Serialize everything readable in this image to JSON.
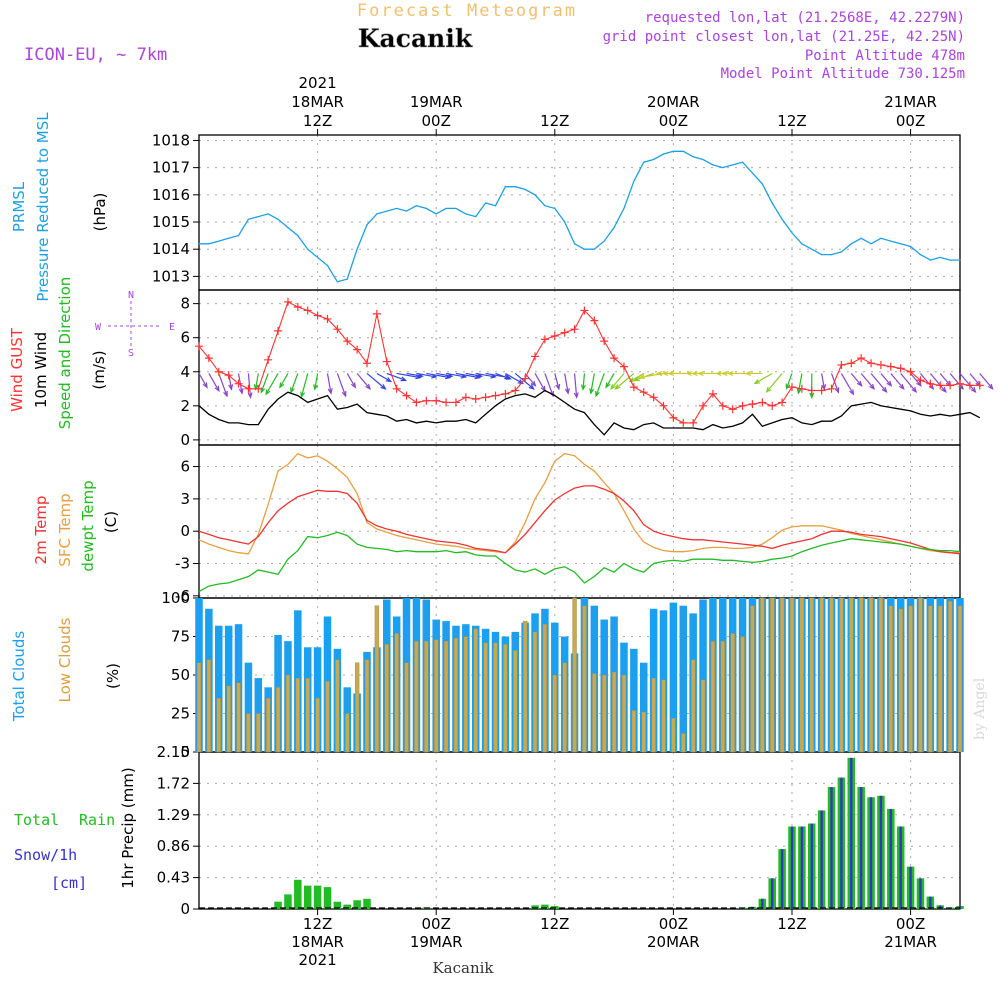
{
  "header": {
    "subtitle": "Forecast Meteogram",
    "location": "Kacanik",
    "model": "ICON-EU, ~ 7km",
    "requested": "requested lon,lat (21.2568E, 42.2279N)",
    "gridpoint": "grid point closest lon,lat (21.25E, 42.25N)",
    "point_alt": "Point Altitude 478m",
    "model_alt": "Model Point Altitude 730.125m",
    "credit": "by Angel",
    "footer": "Kacanik"
  },
  "colors": {
    "pressure": "#1ba1e2",
    "gust": "#ff3333",
    "wind": "#000000",
    "temp": "#ee3333",
    "sfc": "#e6a040",
    "dew": "#22bb22",
    "cloud_total": "#1aa0ee",
    "cloud_low": "#c8a850",
    "rain": "#22bb22",
    "snow": "#3333cc",
    "label_purple": "#aa44dd"
  },
  "time_axis": {
    "top": [
      {
        "h": 12,
        "lines": [
          "2021",
          "18MAR",
          "12Z"
        ]
      },
      {
        "h": 24,
        "lines": [
          "19MAR",
          "00Z"
        ]
      },
      {
        "h": 36,
        "lines": [
          "12Z"
        ]
      },
      {
        "h": 48,
        "lines": [
          "20MAR",
          "00Z"
        ]
      },
      {
        "h": 60,
        "lines": [
          "12Z"
        ]
      },
      {
        "h": 72,
        "lines": [
          "21MAR",
          "00Z"
        ]
      }
    ],
    "bottom": [
      {
        "h": 12,
        "lines": [
          "12Z",
          "18MAR",
          "2021"
        ]
      },
      {
        "h": 24,
        "lines": [
          "00Z",
          "19MAR"
        ]
      },
      {
        "h": 36,
        "lines": [
          "12Z"
        ]
      },
      {
        "h": 48,
        "lines": [
          "00Z",
          "20MAR"
        ]
      },
      {
        "h": 60,
        "lines": [
          "12Z"
        ]
      },
      {
        "h": 72,
        "lines": [
          "00Z",
          "21MAR"
        ]
      }
    ]
  },
  "labels": {
    "pressure": [
      "PRMSL",
      "Pressure Reduced to MSL"
    ],
    "pressure_unit": "(hPa)",
    "wind": [
      "Wind GUST",
      "10m Wind",
      "Speed and Direction"
    ],
    "wind_unit": "(m/s)",
    "compass_n": "N",
    "compass_s": "S",
    "compass_w": "W",
    "compass_e": "E",
    "temp": [
      "2m Temp",
      "SFC Temp",
      "dewpt Temp"
    ],
    "temp_unit": "(C)",
    "clouds": [
      "Total Clouds",
      "Low Clouds"
    ],
    "clouds_unit": "(%)",
    "precip": [
      "Total",
      "Rain",
      "Snow/1h",
      "[cm]"
    ],
    "precip_unit": "1hr Precip (mm)"
  },
  "chart_data": [
    {
      "type": "line",
      "name": "pressure",
      "title": "PRMSL Pressure Reduced to MSL",
      "ylabel": "(hPa)",
      "x_start_hour": 0,
      "x_step": 1,
      "xlim": [
        0,
        77
      ],
      "ylim": [
        1012.5,
        1018.2
      ],
      "yticks": [
        1013,
        1014,
        1015,
        1016,
        1017,
        1018
      ],
      "series": [
        {
          "name": "PRMSL",
          "values": [
            1014.2,
            1014.2,
            1014.3,
            1014.4,
            1014.5,
            1015.1,
            1015.2,
            1015.3,
            1015.1,
            1014.8,
            1014.5,
            1014.0,
            1013.7,
            1013.4,
            1012.8,
            1012.9,
            1014.0,
            1014.9,
            1015.3,
            1015.4,
            1015.5,
            1015.4,
            1015.6,
            1015.5,
            1015.3,
            1015.5,
            1015.5,
            1015.3,
            1015.2,
            1015.7,
            1015.6,
            1016.3,
            1016.3,
            1016.2,
            1016.0,
            1015.6,
            1015.5,
            1015.0,
            1014.2,
            1014.0,
            1014.0,
            1014.3,
            1014.8,
            1015.5,
            1016.5,
            1017.2,
            1017.3,
            1017.5,
            1017.6,
            1017.6,
            1017.4,
            1017.3,
            1017.1,
            1017.0,
            1017.1,
            1017.2,
            1016.8,
            1016.4,
            1015.7,
            1015.1,
            1014.6,
            1014.2,
            1014.0,
            1013.8,
            1013.8,
            1013.9,
            1014.2,
            1014.4,
            1014.2,
            1014.4,
            1014.3,
            1014.2,
            1014.1,
            1013.8,
            1013.6,
            1013.7,
            1013.6,
            1013.6
          ]
        }
      ]
    },
    {
      "type": "line",
      "name": "wind",
      "title": "Wind GUST / 10m Wind Speed and Direction",
      "ylabel": "(m/s)",
      "x_start_hour": 0,
      "x_step": 1,
      "xlim": [
        0,
        77
      ],
      "ylim": [
        -0.3,
        8.8
      ],
      "yticks": [
        0,
        2,
        4,
        6,
        8
      ],
      "series": [
        {
          "name": "Wind GUST",
          "values": [
            5.5,
            4.8,
            4.0,
            3.8,
            3.3,
            3.0,
            3.0,
            4.7,
            6.4,
            8.1,
            7.8,
            7.6,
            7.3,
            7.1,
            6.5,
            5.8,
            5.3,
            4.5,
            7.4,
            4.6,
            3.0,
            2.6,
            2.2,
            2.3,
            2.3,
            2.2,
            2.2,
            2.5,
            2.4,
            2.5,
            2.6,
            2.7,
            2.9,
            3.6,
            4.9,
            5.9,
            6.1,
            6.3,
            6.5,
            7.6,
            7.0,
            5.8,
            4.8,
            4.3,
            3.1,
            2.8,
            2.5,
            2.0,
            1.3,
            1.0,
            1.0,
            2.0,
            2.7,
            2.0,
            1.8,
            2.0,
            2.1,
            2.2,
            2.0,
            2.2,
            3.1,
            3.0,
            2.9,
            2.9,
            3.0,
            4.4,
            4.5,
            4.8,
            4.5,
            4.4,
            4.3,
            4.2,
            4.0,
            3.5,
            3.3,
            3.2,
            3.2,
            3.3,
            3.2,
            3.2
          ]
        },
        {
          "name": "10m Wind",
          "values": [
            2.0,
            1.5,
            1.2,
            1.0,
            1.0,
            0.9,
            0.9,
            1.8,
            2.4,
            2.8,
            2.6,
            2.2,
            2.4,
            2.6,
            1.8,
            1.9,
            2.1,
            1.6,
            1.5,
            1.4,
            1.1,
            1.2,
            1.0,
            1.1,
            1.0,
            1.1,
            1.1,
            1.2,
            1.0,
            1.5,
            2.0,
            2.4,
            2.6,
            2.7,
            2.5,
            2.9,
            2.6,
            2.2,
            1.8,
            1.6,
            0.9,
            0.3,
            1.0,
            0.7,
            0.6,
            0.9,
            1.0,
            0.7,
            0.7,
            0.7,
            0.7,
            0.6,
            0.9,
            0.7,
            0.8,
            1.0,
            1.5,
            0.8,
            1.0,
            1.2,
            1.3,
            1.0,
            0.9,
            1.1,
            1.1,
            1.4,
            2.0,
            2.1,
            2.2,
            2.0,
            1.9,
            1.8,
            1.7,
            1.5,
            1.4,
            1.5,
            1.4,
            1.5,
            1.6,
            1.3
          ]
        }
      ],
      "directions_deg": [
        330,
        330,
        340,
        350,
        350,
        355,
        10,
        20,
        30,
        30,
        20,
        15,
        10,
        350,
        340,
        330,
        320,
        310,
        300,
        290,
        280,
        280,
        280,
        280,
        280,
        280,
        280,
        280,
        280,
        280,
        290,
        300,
        310,
        320,
        330,
        340,
        345,
        350,
        355,
        5,
        10,
        20,
        30,
        40,
        50,
        60,
        70,
        80,
        90,
        90,
        90,
        90,
        90,
        90,
        90,
        90,
        90,
        90,
        60,
        40,
        20,
        10,
        0,
        350,
        340,
        330,
        320,
        320,
        320,
        320,
        320,
        320,
        320,
        320,
        320,
        320,
        320,
        320,
        320,
        320
      ]
    },
    {
      "type": "line",
      "name": "temperature",
      "title": "2m Temp / SFC Temp / dewpt Temp",
      "ylabel": "(C)",
      "x_start_hour": 0,
      "x_step": 1,
      "xlim": [
        0,
        77
      ],
      "ylim": [
        -6.2,
        8.0
      ],
      "yticks": [
        -6,
        -3,
        0,
        3,
        6
      ],
      "series": [
        {
          "name": "2m Temp",
          "values": [
            0.0,
            -0.3,
            -0.6,
            -0.8,
            -1.0,
            -1.2,
            -0.5,
            0.8,
            1.9,
            2.6,
            3.2,
            3.5,
            3.8,
            3.7,
            3.7,
            3.5,
            2.6,
            1.0,
            0.5,
            0.2,
            0.0,
            -0.3,
            -0.5,
            -0.7,
            -0.9,
            -1.0,
            -1.1,
            -1.3,
            -1.6,
            -1.7,
            -1.8,
            -2.0,
            -1.2,
            -0.3,
            0.8,
            1.9,
            2.9,
            3.5,
            4.0,
            4.2,
            4.2,
            3.9,
            3.5,
            2.8,
            1.9,
            0.6,
            0.0,
            -0.3,
            -0.5,
            -0.7,
            -0.8,
            -0.8,
            -0.9,
            -1.0,
            -1.1,
            -1.2,
            -1.3,
            -1.4,
            -1.6,
            -1.3,
            -1.1,
            -0.9,
            -0.7,
            -0.3,
            0.0,
            0.0,
            -0.1,
            -0.3,
            -0.4,
            -0.5,
            -0.7,
            -0.9,
            -1.1,
            -1.4,
            -1.7,
            -1.9,
            -2.0,
            -2.1
          ]
        },
        {
          "name": "SFC Temp",
          "values": [
            -0.8,
            -1.2,
            -1.5,
            -1.8,
            -2.0,
            -2.1,
            -0.3,
            2.5,
            5.6,
            6.2,
            7.2,
            6.8,
            7.0,
            6.5,
            5.8,
            5.0,
            3.5,
            0.8,
            0.2,
            -0.1,
            -0.4,
            -0.6,
            -0.8,
            -1.0,
            -1.2,
            -1.3,
            -1.4,
            -1.6,
            -1.7,
            -1.8,
            -1.9,
            -2.0,
            -1.0,
            0.8,
            3.0,
            4.5,
            6.5,
            7.2,
            7.0,
            6.2,
            5.6,
            4.5,
            3.5,
            1.9,
            0.2,
            -1.0,
            -1.5,
            -1.8,
            -1.9,
            -1.9,
            -1.8,
            -1.6,
            -1.5,
            -1.5,
            -1.6,
            -1.6,
            -1.5,
            -1.2,
            -0.6,
            0.1,
            0.4,
            0.5,
            0.5,
            0.5,
            0.3,
            0.1,
            -0.2,
            -0.4,
            -0.6,
            -0.8,
            -1.0,
            -1.2,
            -1.4,
            -1.6,
            -1.8,
            -1.9,
            -2.0,
            -2.0
          ]
        },
        {
          "name": "dewpt Temp",
          "values": [
            -5.6,
            -5.1,
            -4.9,
            -4.8,
            -4.5,
            -4.2,
            -3.6,
            -3.8,
            -4.0,
            -2.6,
            -1.8,
            -0.5,
            -0.6,
            -0.4,
            -0.1,
            -0.4,
            -1.2,
            -1.5,
            -1.6,
            -1.7,
            -1.9,
            -1.8,
            -1.9,
            -1.9,
            -1.9,
            -1.8,
            -2.0,
            -1.9,
            -2.2,
            -2.3,
            -2.3,
            -3.0,
            -3.6,
            -3.8,
            -3.5,
            -4.0,
            -3.5,
            -3.3,
            -3.8,
            -4.8,
            -4.2,
            -3.4,
            -3.8,
            -3.0,
            -3.5,
            -3.8,
            -3.0,
            -2.8,
            -2.7,
            -2.8,
            -2.6,
            -2.6,
            -2.6,
            -2.7,
            -2.7,
            -2.8,
            -2.9,
            -2.8,
            -2.6,
            -2.5,
            -2.3,
            -1.9,
            -1.6,
            -1.3,
            -1.1,
            -0.9,
            -0.7,
            -0.8,
            -0.9,
            -1.0,
            -1.1,
            -1.2,
            -1.4,
            -1.6,
            -1.7,
            -1.8,
            -1.8,
            -1.9
          ]
        }
      ]
    },
    {
      "type": "bar",
      "name": "clouds",
      "title": "Total Clouds / Low Clouds",
      "ylabel": "(%)",
      "x_start_hour": 0,
      "x_step": 1,
      "xlim": [
        0,
        77
      ],
      "ylim": [
        0,
        100
      ],
      "yticks": [
        0,
        25,
        50,
        75,
        100
      ],
      "series": [
        {
          "name": "Total Clouds",
          "values": [
            100,
            93,
            82,
            82,
            83,
            58,
            48,
            42,
            76,
            72,
            92,
            68,
            68,
            88,
            67,
            42,
            38,
            65,
            68,
            99,
            88,
            100,
            100,
            99,
            86,
            85,
            82,
            83,
            82,
            80,
            78,
            75,
            78,
            84,
            90,
            93,
            84,
            75,
            64,
            100,
            95,
            86,
            88,
            71,
            67,
            58,
            93,
            92,
            97,
            95,
            90,
            99,
            100,
            100,
            100,
            100,
            100,
            100,
            100,
            100,
            100,
            100,
            100,
            100,
            100,
            100,
            100,
            100,
            100,
            100,
            100,
            100,
            100,
            100,
            100,
            100,
            100,
            100
          ]
        },
        {
          "name": "Low Clouds",
          "values": [
            58,
            60,
            35,
            43,
            45,
            25,
            25,
            35,
            42,
            50,
            48,
            48,
            35,
            46,
            60,
            25,
            58,
            60,
            95,
            70,
            77,
            58,
            72,
            72,
            73,
            72,
            74,
            75,
            80,
            71,
            71,
            70,
            66,
            85,
            78,
            83,
            50,
            58,
            100,
            95,
            51,
            50,
            52,
            50,
            27,
            26,
            48,
            47,
            22,
            12,
            60,
            47,
            72,
            72,
            77,
            75,
            95,
            100,
            100,
            100,
            100,
            100,
            100,
            100,
            100,
            100,
            100,
            100,
            100,
            100,
            95,
            93,
            95,
            100,
            95,
            95,
            98,
            95
          ]
        }
      ]
    },
    {
      "type": "bar",
      "name": "precip",
      "title": "Total Rain / Snow/1h [cm]",
      "ylabel": "1hr Precip (mm)",
      "x_start_hour": 0,
      "x_step": 1,
      "xlim": [
        0,
        77
      ],
      "ylim": [
        0,
        2.15
      ],
      "yticks": [
        0,
        0.43,
        0.86,
        1.29,
        1.72,
        2.15
      ],
      "ytick_labels": [
        "0",
        "0.43",
        "0.86",
        "1.29",
        "1.72",
        "2.15"
      ],
      "series": [
        {
          "name": "Total Rain",
          "values": [
            0,
            0,
            0,
            0,
            0,
            0,
            0,
            0,
            0.1,
            0.2,
            0.4,
            0.32,
            0.32,
            0.3,
            0.1,
            0.06,
            0.12,
            0.14,
            0,
            0,
            0,
            0,
            0,
            0.02,
            0,
            0,
            0,
            0,
            0,
            0,
            0,
            0,
            0,
            0,
            0.05,
            0.06,
            0.04,
            0,
            0,
            0,
            0,
            0,
            0,
            0,
            0,
            0,
            0,
            0,
            0,
            0,
            0,
            0,
            0,
            0,
            0,
            0.02,
            0.03,
            0.14,
            0.42,
            0.82,
            1.13,
            1.13,
            1.17,
            1.35,
            1.67,
            1.8,
            2.07,
            1.67,
            1.53,
            1.55,
            1.37,
            1.13,
            0.58,
            0.42,
            0.17,
            0.05,
            0.02,
            0.04
          ]
        },
        {
          "name": "Snow/1h",
          "values": [
            0,
            0,
            0,
            0,
            0,
            0,
            0,
            0,
            0,
            0,
            0,
            0,
            0,
            0,
            0,
            0,
            0,
            0,
            0,
            0,
            0,
            0,
            0,
            0,
            0,
            0,
            0,
            0,
            0,
            0,
            0,
            0,
            0,
            0,
            0,
            0,
            0,
            0,
            0,
            0,
            0,
            0,
            0,
            0,
            0,
            0,
            0,
            0,
            0,
            0,
            0,
            0,
            0,
            0,
            0,
            0.02,
            0.03,
            0.14,
            0.42,
            0.82,
            1.13,
            1.13,
            1.17,
            1.35,
            1.67,
            1.8,
            2.07,
            1.67,
            1.53,
            1.55,
            1.37,
            1.13,
            0.58,
            0.42,
            0.17,
            0.05,
            0.02,
            0.04
          ]
        }
      ]
    }
  ]
}
